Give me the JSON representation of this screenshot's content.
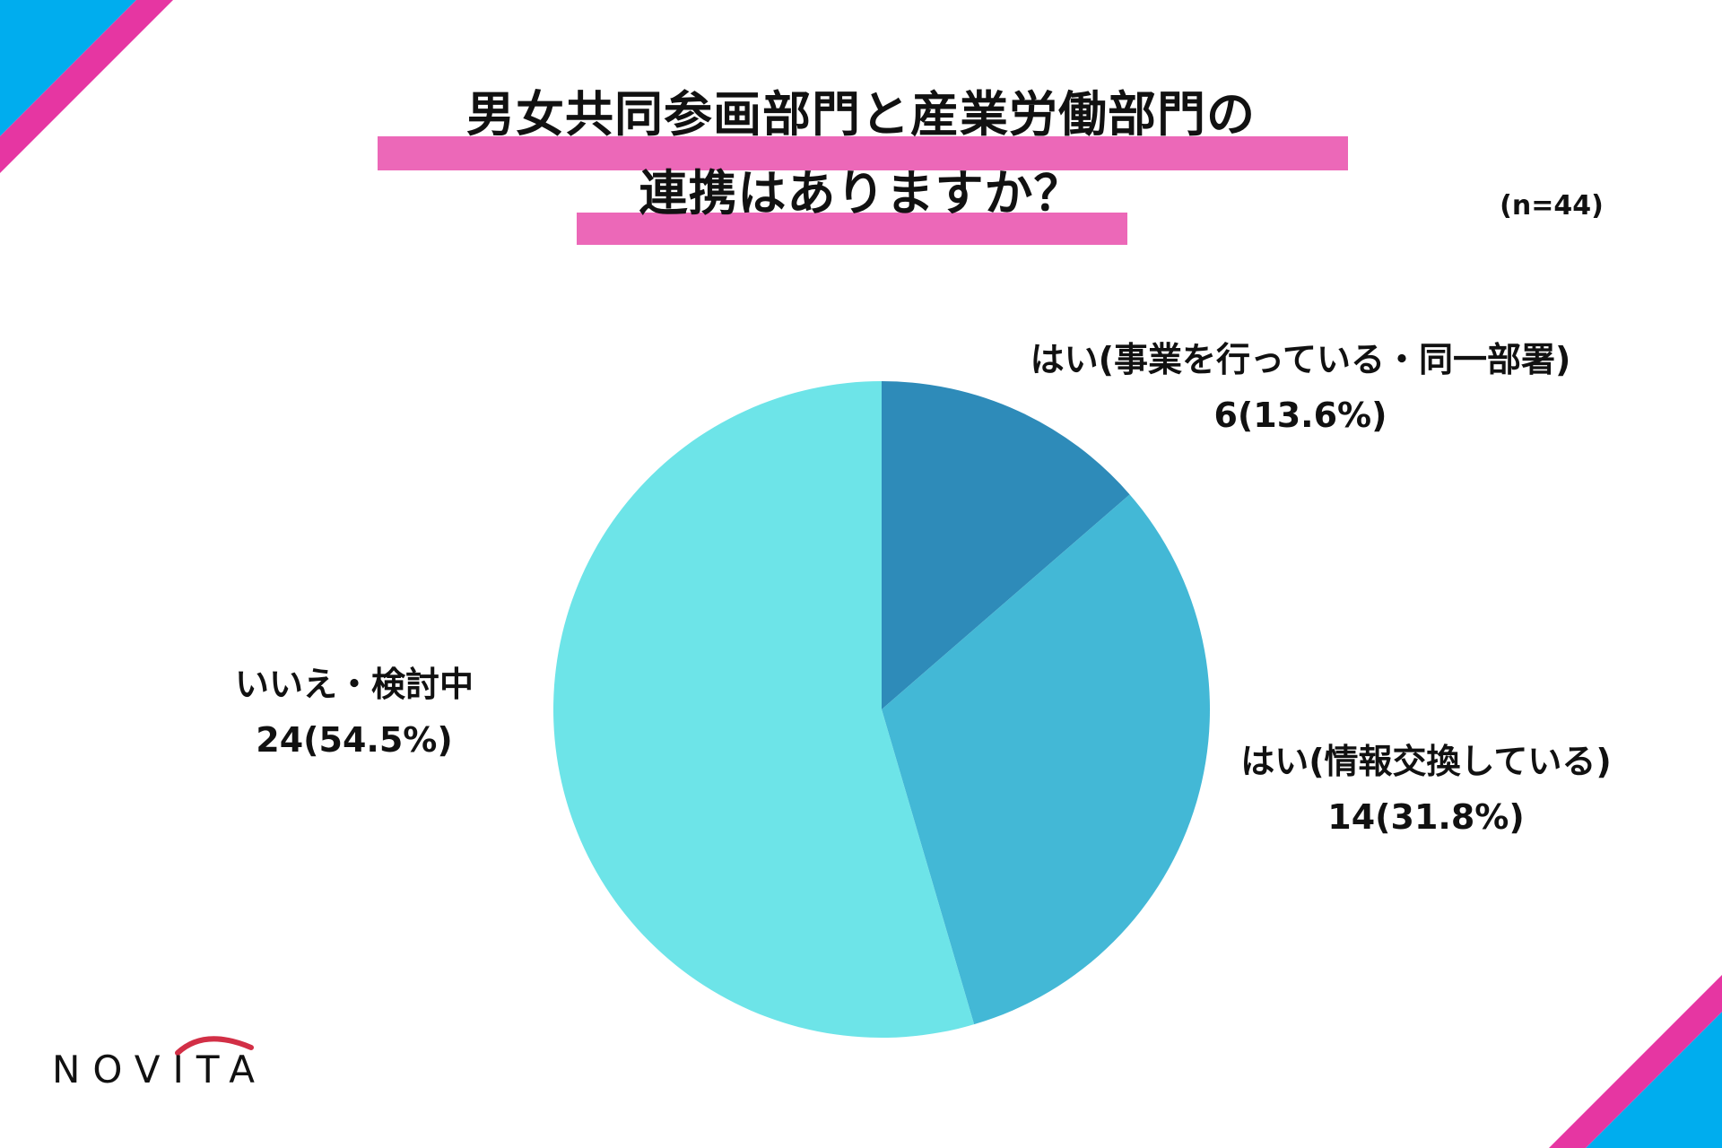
{
  "title": {
    "line1": "男女共同参画部門と産業労働部門の",
    "line2": "連携はありますか？"
  },
  "sample_size": "(n=44)",
  "logo": {
    "text": "NOVITA",
    "arc_color": "#d22f46"
  },
  "decor": {
    "cyan": "#00adee",
    "magenta": "#e636a2",
    "highlight": "#ec68b8"
  },
  "chart_data": {
    "type": "pie",
    "title": "男女共同参画部門と産業労働部門の連携はありますか？",
    "n": 44,
    "start_angle_deg": 0,
    "direction": "clockwise",
    "slices": [
      {
        "label": "はい(事業を行っている・同一部署)",
        "value": 6,
        "percent": 13.6,
        "display": "6(13.6%)",
        "color": "#2e8bb9"
      },
      {
        "label": "はい(情報交換している)",
        "value": 14,
        "percent": 31.8,
        "display": "14(31.8%)",
        "color": "#43b8d6"
      },
      {
        "label": "いいえ・検討中",
        "value": 24,
        "percent": 54.5,
        "display": "24(54.5%)",
        "color": "#6de4e8"
      }
    ]
  }
}
